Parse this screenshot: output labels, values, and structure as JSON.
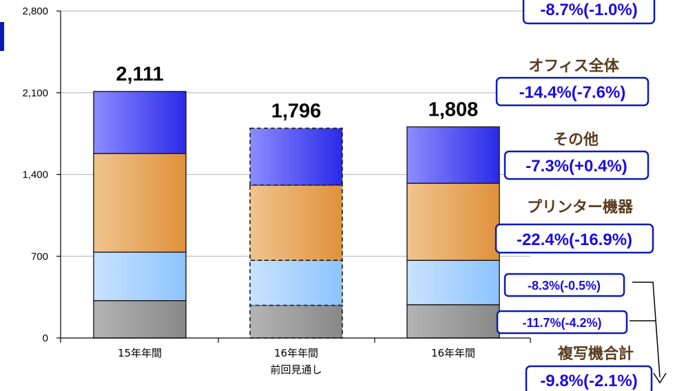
{
  "chart_data": {
    "type": "bar",
    "stacked": true,
    "categories": [
      "15年年間",
      "16年年間\n前回見通し",
      "16年年間"
    ],
    "ylim": [
      0,
      2800
    ],
    "yticks": [
      0,
      700,
      1400,
      2100,
      2800
    ],
    "grid": true,
    "series": [
      {
        "values": [
          320,
          280,
          285
        ],
        "color_from": "#b4b4b4",
        "color_to": "#888888"
      },
      {
        "values": [
          415,
          385,
          380
        ],
        "color_from": "#c9e2ff",
        "color_to": "#8cc4ff"
      },
      {
        "values": [
          845,
          645,
          660
        ],
        "color_from": "#f0c48f",
        "color_to": "#e0913a"
      },
      {
        "values": [
          531,
          486,
          483
        ],
        "color_from": "#8c8cff",
        "color_to": "#2a2ae8"
      }
    ],
    "totals": [
      "2,111",
      "1,796",
      "1,808"
    ],
    "dashed_category": 1
  },
  "annotations": {
    "top_pct": "-8.7%(-1.0%)",
    "office_title": "オフィス全体",
    "office_pct": "-14.4%(-7.6%)",
    "other_title": "その他",
    "other_pct": "-7.3%(+0.4%)",
    "printer_title": "プリンター機器",
    "printer_pct": "-22.4%(-16.9%)",
    "seg2_pct": "-8.3%(-0.5%)",
    "seg1_pct": "-11.7%(-4.2%)",
    "copier_title": "複写機合計",
    "copier_pct": "-9.8%(-2.1%)"
  },
  "colors": {
    "accent_bar": "#0a1ab5",
    "box_border": "#0a1ab5",
    "pct_text": "#1a0ae6",
    "label_text": "#5a3a1c"
  }
}
